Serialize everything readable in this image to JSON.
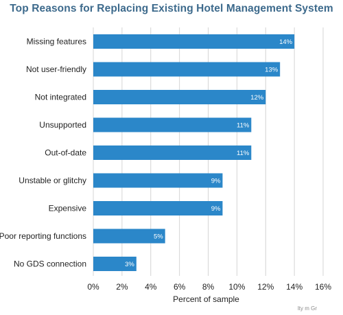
{
  "chart_data": {
    "type": "bar",
    "orientation": "horizontal",
    "title": "Top Reasons for Replacing Existing Hotel Management System",
    "xlabel": "Percent of sample",
    "ylabel": "",
    "categories": [
      "Missing features",
      "Not user-friendly",
      "Not integrated",
      "Unsupported",
      "Out-of-date",
      "Unstable or glitchy",
      "Expensive",
      "Poor reporting functions",
      "No GDS connection"
    ],
    "values": [
      14,
      13,
      12,
      11,
      11,
      9,
      9,
      5,
      3
    ],
    "data_labels": [
      "14%",
      "13%",
      "12%",
      "11%",
      "11%",
      "9%",
      "9%",
      "5%",
      "3%"
    ],
    "xlim": [
      0,
      16
    ],
    "xticks": [
      0,
      2,
      4,
      6,
      8,
      10,
      12,
      14,
      16
    ],
    "xtick_labels": [
      "0%",
      "2%",
      "4%",
      "6%",
      "8%",
      "10%",
      "12%",
      "14%",
      "16%"
    ],
    "grid": true,
    "bar_color": "#2b87c9",
    "grid_color": "#d4d4d4",
    "title_color": "#3d6a8c"
  },
  "watermark": "lty m ﻿Gr"
}
